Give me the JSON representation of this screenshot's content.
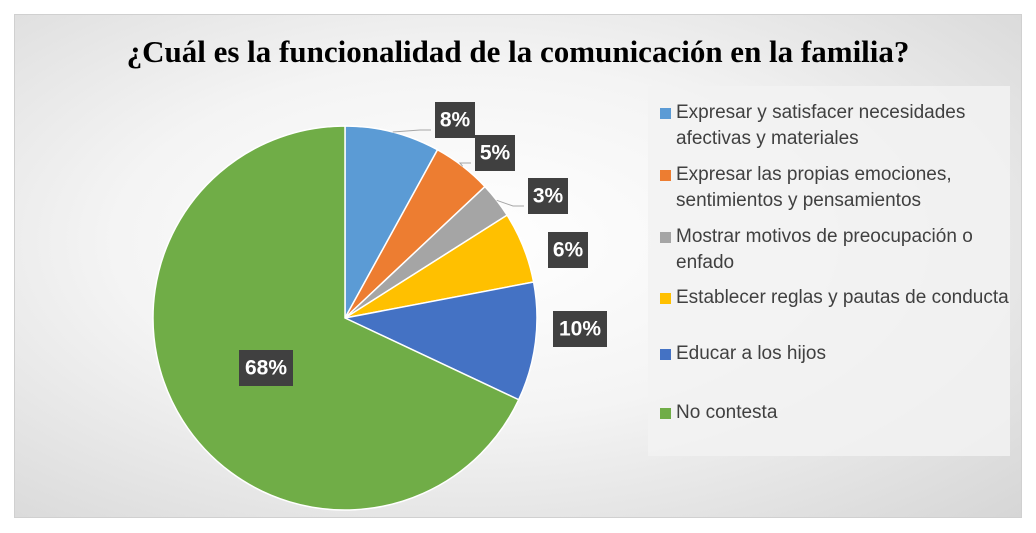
{
  "chart_data": {
    "type": "pie",
    "title": "¿Cuál es la funcionalidad de la comunicación en la familia?",
    "categories": [
      "Expresar y satisfacer necesidades afectivas y materiales",
      "Expresar las propias emociones, sentimientos y pensamientos",
      "Mostrar motivos de preocupación o enfado",
      "Establecer reglas y pautas de conducta",
      "Educar a los hijos",
      "No contesta"
    ],
    "values": [
      8,
      5,
      3,
      6,
      10,
      68
    ],
    "value_labels": [
      "8%",
      "5%",
      "3%",
      "6%",
      "10%",
      "68%"
    ],
    "colors": [
      "#5b9bd5",
      "#ed7d31",
      "#a5a5a5",
      "#ffc000",
      "#4472c4",
      "#70ad47"
    ],
    "legend": "right"
  }
}
